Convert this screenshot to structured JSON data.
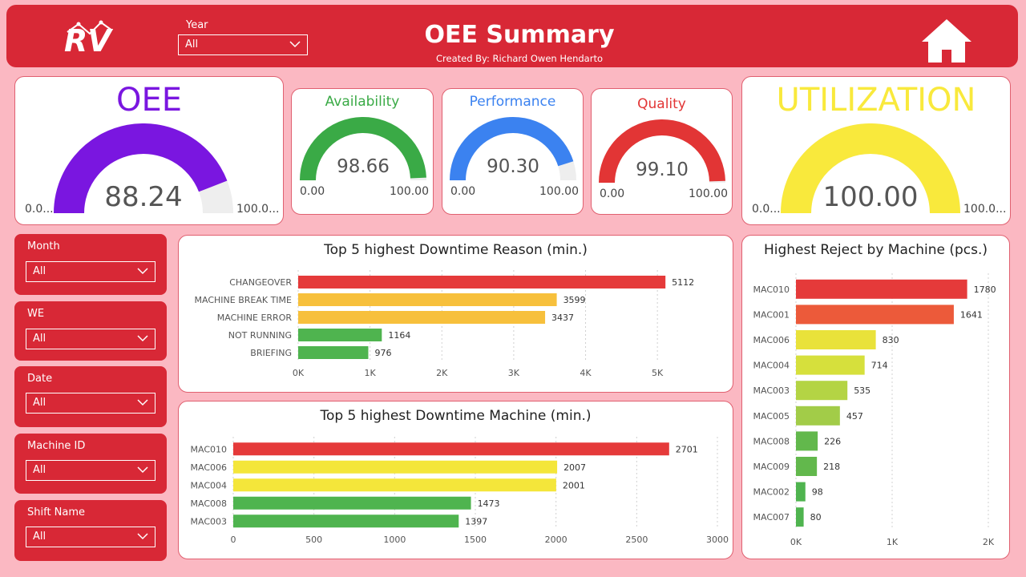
{
  "header": {
    "title": "OEE Summary",
    "subtitle": "Created By: Richard Owen Hendarto",
    "logo_text": "RV",
    "year_label": "Year",
    "year_value": "All"
  },
  "kpis": {
    "oee": {
      "title": "OEE",
      "value": "88.24",
      "min": "0.0...",
      "max": "100.0...",
      "fraction": 0.8824,
      "color": "#7a16e0"
    },
    "availability": {
      "title": "Availability",
      "value": "98.66",
      "min": "0.00",
      "max": "100.00",
      "fraction": 0.9866,
      "color": "#3aaa46"
    },
    "performance": {
      "title": "Performance",
      "value": "90.30",
      "min": "0.00",
      "max": "100.00",
      "fraction": 0.903,
      "color": "#3b82f0"
    },
    "quality": {
      "title": "Quality",
      "value": "99.10",
      "min": "0.00",
      "max": "100.00",
      "fraction": 0.991,
      "color": "#e23535"
    },
    "utilization": {
      "title": "UTILIZATION",
      "value": "100.00",
      "min": "0.0...",
      "max": "100.0...",
      "fraction": 1.0,
      "color": "#f9e93c"
    }
  },
  "slicers": [
    {
      "label": "Month",
      "value": "All"
    },
    {
      "label": "WE",
      "value": "All"
    },
    {
      "label": "Date",
      "value": "All"
    },
    {
      "label": "Machine ID",
      "value": "All"
    },
    {
      "label": "Shift Name",
      "value": "All"
    }
  ],
  "chart_data": [
    {
      "type": "bar",
      "orientation": "horizontal",
      "title": "Top 5 highest Downtime Reason (min.)",
      "categories": [
        "CHANGEOVER",
        "MACHINE BREAK TIME",
        "MACHINE ERROR",
        "NOT RUNNING",
        "BRIEFING"
      ],
      "values": [
        5112,
        3599,
        3437,
        1164,
        976
      ],
      "colors": [
        "#e53a3a",
        "#f7c03c",
        "#f7c03c",
        "#4fb44f",
        "#4fb44f"
      ],
      "xticks": [
        "0K",
        "1K",
        "2K",
        "3K",
        "4K",
        "5K"
      ],
      "xtick_values": [
        0,
        1000,
        2000,
        3000,
        4000,
        5000
      ],
      "xlim": [
        0,
        5400
      ],
      "grid": true
    },
    {
      "type": "bar",
      "orientation": "horizontal",
      "title": "Top 5 highest Downtime Machine (min.)",
      "categories": [
        "MAC010",
        "MAC006",
        "MAC004",
        "MAC008",
        "MAC003"
      ],
      "values": [
        2701,
        2007,
        2001,
        1473,
        1397
      ],
      "colors": [
        "#e53a3a",
        "#f4e63a",
        "#f4e63a",
        "#4fb44f",
        "#4fb44f"
      ],
      "xticks": [
        "0",
        "500",
        "1000",
        "1500",
        "2000",
        "2500",
        "3000"
      ],
      "xtick_values": [
        0,
        500,
        1000,
        1500,
        2000,
        2500,
        3000
      ],
      "xlim": [
        0,
        3000
      ],
      "grid": true
    },
    {
      "type": "bar",
      "orientation": "horizontal",
      "title": "Highest Reject by Machine (pcs.)",
      "categories": [
        "MAC010",
        "MAC001",
        "MAC006",
        "MAC004",
        "MAC003",
        "MAC005",
        "MAC008",
        "MAC009",
        "MAC002",
        "MAC007"
      ],
      "values": [
        1780,
        1641,
        830,
        714,
        535,
        457,
        226,
        218,
        98,
        80
      ],
      "colors": [
        "#e53a3a",
        "#ec5a3a",
        "#e9e23a",
        "#d6e03c",
        "#b4d444",
        "#a2cc48",
        "#62b84c",
        "#62b84c",
        "#4fb44f",
        "#4fb44f"
      ],
      "xticks": [
        "0K",
        "1K",
        "2K"
      ],
      "xtick_values": [
        0,
        1000,
        2000
      ],
      "xlim": [
        0,
        2000
      ],
      "grid": true
    }
  ]
}
